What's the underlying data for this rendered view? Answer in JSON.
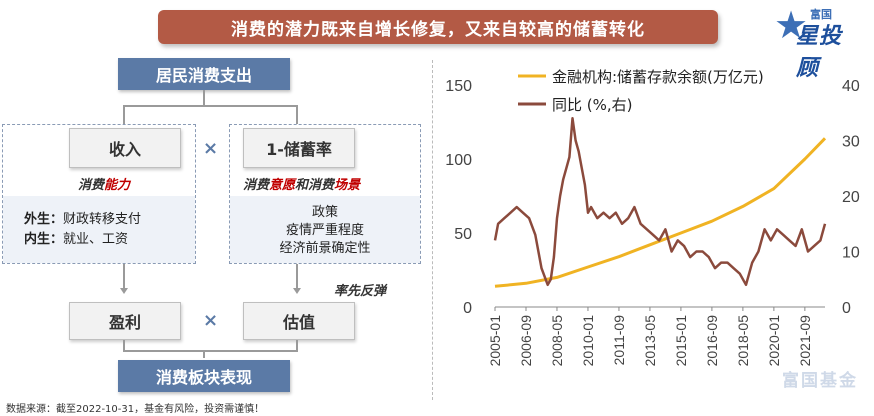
{
  "title": "消费的潜力既来自增长修复，又来自较高的储蓄转化",
  "logo": {
    "top": "富国",
    "main": "星投顾"
  },
  "diagram": {
    "top_box": "居民消费支出",
    "income_box": "收入",
    "savings_box": "1-储蓄率",
    "times_symbol": "×",
    "ability_label_prefix": "消费",
    "ability_label_highlight": "能力",
    "intent_label": {
      "p1": "消费",
      "h1": "意愿",
      "p2": "和消费",
      "h2": "场景"
    },
    "left_notes": [
      {
        "key": "外生：",
        "val": "财政转移支付"
      },
      {
        "key": "内生：",
        "val": "就业、工资"
      }
    ],
    "right_notes": [
      "政策",
      "疫情严重程度",
      "经济前景确定性"
    ],
    "lead_rebound": "率先反弹",
    "profit_box": "盈利",
    "valuation_box": "估值",
    "bottom_box": "消费板块表现"
  },
  "source_note": "数据来源：截至2022-10-31，基金有风险，投资需谨慎！",
  "watermark": "富国基金",
  "colors": {
    "banner": "#b35a45",
    "blue_box": "#5b7aa6",
    "deposits": "#f0b323",
    "yoy": "#8b4a3c"
  },
  "chart_data": {
    "type": "line",
    "x_ticks": [
      "2005-01",
      "2006-09",
      "2008-05",
      "2010-01",
      "2011-09",
      "2013-05",
      "2015-01",
      "2016-09",
      "2018-05",
      "2020-01",
      "2021-09"
    ],
    "series": [
      {
        "name": "金融机构:储蓄存款余额(万亿元)",
        "axis": "left",
        "x": [
          "2005-01",
          "2006-09",
          "2008-05",
          "2010-01",
          "2011-09",
          "2013-05",
          "2015-01",
          "2016-09",
          "2018-05",
          "2020-01",
          "2021-09",
          "2022-10"
        ],
        "values": [
          14,
          16,
          20,
          27,
          34,
          42,
          50,
          58,
          68,
          80,
          100,
          114
        ]
      },
      {
        "name": "同比 (%,右)",
        "axis": "right",
        "x": [
          "2005-01",
          "2005-03",
          "2005-07",
          "2005-11",
          "2006-03",
          "2006-07",
          "2006-11",
          "2007-03",
          "2007-07",
          "2007-11",
          "2008-01",
          "2008-03",
          "2008-05",
          "2008-07",
          "2008-09",
          "2008-11",
          "2009-01",
          "2009-03",
          "2009-05",
          "2009-07",
          "2009-09",
          "2009-11",
          "2010-01",
          "2010-03",
          "2010-07",
          "2010-11",
          "2011-03",
          "2011-07",
          "2011-11",
          "2012-03",
          "2012-07",
          "2012-11",
          "2013-03",
          "2013-07",
          "2013-11",
          "2014-03",
          "2014-07",
          "2014-11",
          "2015-03",
          "2015-07",
          "2015-11",
          "2016-03",
          "2016-07",
          "2016-11",
          "2017-03",
          "2017-07",
          "2017-11",
          "2018-03",
          "2018-07",
          "2018-11",
          "2019-03",
          "2019-07",
          "2019-11",
          "2020-03",
          "2020-07",
          "2020-11",
          "2021-03",
          "2021-07",
          "2021-11",
          "2022-03",
          "2022-07",
          "2022-10"
        ],
        "values": [
          12,
          15,
          16,
          17,
          18,
          17,
          16,
          13,
          7,
          4,
          5,
          9,
          16,
          20,
          23,
          25,
          27,
          34,
          30,
          28,
          25,
          22,
          17,
          18,
          16,
          17,
          16,
          17,
          15,
          16,
          18,
          15,
          14,
          13,
          12,
          14,
          10,
          12,
          11,
          9,
          10,
          10,
          9,
          7,
          8,
          8,
          7,
          6,
          4,
          8,
          10,
          14,
          12,
          14,
          13,
          12,
          11,
          14,
          10,
          11,
          12,
          15
        ]
      }
    ],
    "y_left": {
      "min": 0,
      "max": 150,
      "ticks": [
        0,
        50,
        100,
        150
      ]
    },
    "y_right": {
      "min": 0,
      "max": 40,
      "ticks": [
        0,
        10,
        20,
        30,
        40
      ]
    },
    "legend_position": "top-right",
    "grid": false
  }
}
